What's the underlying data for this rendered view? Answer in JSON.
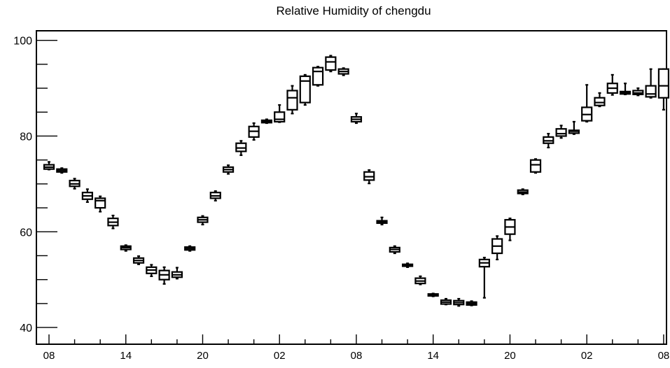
{
  "chart_data": {
    "type": "boxplot",
    "title": "Relative Humidity of chengdu",
    "xlabel": "",
    "ylabel": "",
    "ylim": [
      36.5,
      102
    ],
    "y_ticks": [
      40,
      60,
      80,
      100
    ],
    "x_tick_labels": [
      "08",
      "14",
      "20",
      "02",
      "08",
      "14",
      "20",
      "02",
      "08"
    ],
    "x_tick_hour_index": [
      0,
      6,
      12,
      18,
      24,
      30,
      36,
      42,
      48
    ],
    "grid": false,
    "legend": "none",
    "colors": {
      "stroke": "#000000",
      "background": "#ffffff"
    },
    "boxes": [
      {
        "hour": 0,
        "min": 73.0,
        "q1": 73.1,
        "median": 73.5,
        "q3": 74.0,
        "max": 74.6
      },
      {
        "hour": 1,
        "min": 72.3,
        "q1": 72.5,
        "median": 72.8,
        "q3": 73.1,
        "max": 73.3
      },
      {
        "hour": 2,
        "min": 69.0,
        "q1": 69.5,
        "median": 70.0,
        "q3": 70.7,
        "max": 71.1
      },
      {
        "hour": 3,
        "min": 66.2,
        "q1": 66.8,
        "median": 67.5,
        "q3": 68.2,
        "max": 68.9
      },
      {
        "hour": 4,
        "min": 64.2,
        "q1": 65.0,
        "median": 66.5,
        "q3": 67.0,
        "max": 67.4
      },
      {
        "hour": 5,
        "min": 60.7,
        "q1": 61.3,
        "median": 62.0,
        "q3": 62.8,
        "max": 63.4
      },
      {
        "hour": 6,
        "min": 56.0,
        "q1": 56.3,
        "median": 56.7,
        "q3": 57.0,
        "max": 57.2
      },
      {
        "hour": 7,
        "min": 53.2,
        "q1": 53.5,
        "median": 54.0,
        "q3": 54.5,
        "max": 54.9
      },
      {
        "hour": 8,
        "min": 50.7,
        "q1": 51.3,
        "median": 52.0,
        "q3": 52.6,
        "max": 53.1
      },
      {
        "hour": 9,
        "min": 49.1,
        "q1": 50.0,
        "median": 51.0,
        "q3": 51.9,
        "max": 52.6
      },
      {
        "hour": 10,
        "min": 50.2,
        "q1": 50.5,
        "median": 51.0,
        "q3": 51.6,
        "max": 52.5
      },
      {
        "hour": 11,
        "min": 56.0,
        "q1": 56.2,
        "median": 56.5,
        "q3": 56.8,
        "max": 57.0
      },
      {
        "hour": 12,
        "min": 61.5,
        "q1": 62.0,
        "median": 62.5,
        "q3": 63.0,
        "max": 63.3
      },
      {
        "hour": 13,
        "min": 66.5,
        "q1": 67.0,
        "median": 67.5,
        "q3": 68.2,
        "max": 68.5
      },
      {
        "hour": 14,
        "min": 72.1,
        "q1": 72.5,
        "median": 73.0,
        "q3": 73.5,
        "max": 73.9
      },
      {
        "hour": 15,
        "min": 76.0,
        "q1": 76.8,
        "median": 77.5,
        "q3": 78.5,
        "max": 79.0
      },
      {
        "hour": 16,
        "min": 79.2,
        "q1": 79.8,
        "median": 81.0,
        "q3": 82.0,
        "max": 82.7
      },
      {
        "hour": 17,
        "min": 82.7,
        "q1": 82.8,
        "median": 83.0,
        "q3": 83.3,
        "max": 83.5
      },
      {
        "hour": 18,
        "min": 82.9,
        "q1": 83.0,
        "median": 83.5,
        "q3": 85.0,
        "max": 86.5
      },
      {
        "hour": 19,
        "min": 84.7,
        "q1": 85.5,
        "median": 88.0,
        "q3": 89.5,
        "max": 90.5
      },
      {
        "hour": 20,
        "min": 86.5,
        "q1": 87.0,
        "median": 91.5,
        "q3": 92.5,
        "max": 92.8
      },
      {
        "hour": 21,
        "min": 90.5,
        "q1": 90.7,
        "median": 93.5,
        "q3": 94.3,
        "max": 94.5
      },
      {
        "hour": 22,
        "min": 93.5,
        "q1": 93.8,
        "median": 95.5,
        "q3": 96.5,
        "max": 96.8
      },
      {
        "hour": 23,
        "min": 92.7,
        "q1": 93.0,
        "median": 93.5,
        "q3": 94.0,
        "max": 94.2
      },
      {
        "hour": 24,
        "min": 82.7,
        "q1": 83.0,
        "median": 83.5,
        "q3": 84.0,
        "max": 84.7
      },
      {
        "hour": 25,
        "min": 70.1,
        "q1": 70.8,
        "median": 71.5,
        "q3": 72.5,
        "max": 72.9
      },
      {
        "hour": 26,
        "min": 61.5,
        "q1": 61.8,
        "median": 62.0,
        "q3": 62.3,
        "max": 63.0
      },
      {
        "hour": 27,
        "min": 55.5,
        "q1": 55.8,
        "median": 56.3,
        "q3": 56.7,
        "max": 57.0
      },
      {
        "hour": 28,
        "min": 52.6,
        "q1": 52.8,
        "median": 53.0,
        "q3": 53.2,
        "max": 53.4
      },
      {
        "hour": 29,
        "min": 49.0,
        "q1": 49.2,
        "median": 49.7,
        "q3": 50.3,
        "max": 50.7
      },
      {
        "hour": 30,
        "min": 46.5,
        "q1": 46.6,
        "median": 46.8,
        "q3": 47.0,
        "max": 47.1
      },
      {
        "hour": 31,
        "min": 44.8,
        "q1": 44.9,
        "median": 45.3,
        "q3": 45.7,
        "max": 46.0
      },
      {
        "hour": 32,
        "min": 44.5,
        "q1": 44.8,
        "median": 45.2,
        "q3": 45.6,
        "max": 46.0
      },
      {
        "hour": 33,
        "min": 44.6,
        "q1": 44.7,
        "median": 45.0,
        "q3": 45.3,
        "max": 45.5
      },
      {
        "hour": 34,
        "min": 46.2,
        "q1": 52.7,
        "median": 53.5,
        "q3": 54.2,
        "max": 54.6
      },
      {
        "hour": 35,
        "min": 54.2,
        "q1": 55.5,
        "median": 57.0,
        "q3": 58.5,
        "max": 59.1
      },
      {
        "hour": 36,
        "min": 58.2,
        "q1": 59.5,
        "median": 61.0,
        "q3": 62.5,
        "max": 62.8
      },
      {
        "hour": 37,
        "min": 67.8,
        "q1": 68.0,
        "median": 68.3,
        "q3": 68.7,
        "max": 68.9
      },
      {
        "hour": 38,
        "min": 72.3,
        "q1": 72.5,
        "median": 74.0,
        "q3": 75.0,
        "max": 75.2
      },
      {
        "hour": 39,
        "min": 77.6,
        "q1": 78.5,
        "median": 79.0,
        "q3": 79.8,
        "max": 80.5
      },
      {
        "hour": 40,
        "min": 79.6,
        "q1": 80.0,
        "median": 80.5,
        "q3": 81.5,
        "max": 82.2
      },
      {
        "hour": 41,
        "min": 80.4,
        "q1": 80.6,
        "median": 81.0,
        "q3": 81.2,
        "max": 83.0
      },
      {
        "hour": 42,
        "min": 83.0,
        "q1": 83.2,
        "median": 84.5,
        "q3": 86.0,
        "max": 90.7
      },
      {
        "hour": 43,
        "min": 86.2,
        "q1": 86.4,
        "median": 87.0,
        "q3": 88.0,
        "max": 89.0
      },
      {
        "hour": 44,
        "min": 88.6,
        "q1": 89.0,
        "median": 90.0,
        "q3": 91.0,
        "max": 92.8
      },
      {
        "hour": 45,
        "min": 88.7,
        "q1": 88.8,
        "median": 89.0,
        "q3": 89.3,
        "max": 91.0
      },
      {
        "hour": 46,
        "min": 88.5,
        "q1": 88.7,
        "median": 89.0,
        "q3": 89.5,
        "max": 90.0
      },
      {
        "hour": 47,
        "min": 88.0,
        "q1": 88.2,
        "median": 88.8,
        "q3": 90.5,
        "max": 94.0
      },
      {
        "hour": 48,
        "min": 85.5,
        "q1": 88.0,
        "median": 90.5,
        "q3": 94.0,
        "max": 94.0
      }
    ]
  }
}
